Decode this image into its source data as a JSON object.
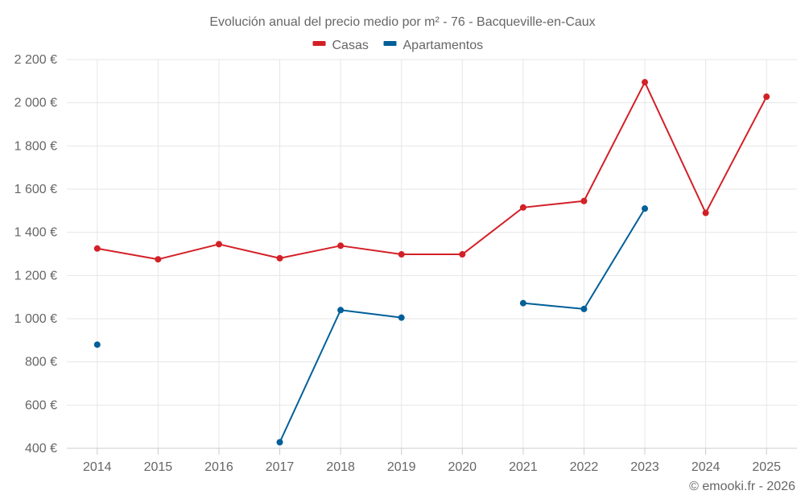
{
  "chart_data": {
    "type": "line",
    "title": "Evolución anual del precio medio por m² - 76 - Bacqueville-en-Caux",
    "categories": [
      "2014",
      "2015",
      "2016",
      "2017",
      "2018",
      "2019",
      "2020",
      "2021",
      "2022",
      "2023",
      "2024",
      "2025"
    ],
    "ylim": [
      400,
      2200
    ],
    "yticks": [
      400,
      600,
      800,
      1000,
      1200,
      1400,
      1600,
      1800,
      2000,
      2200
    ],
    "ytick_labels": [
      "400 €",
      "600 €",
      "800 €",
      "1 000 €",
      "1 200 €",
      "1 400 €",
      "1 600 €",
      "1 800 €",
      "2 000 €",
      "2 200 €"
    ],
    "grid": true,
    "legend_position": "top-center",
    "series": [
      {
        "name": "Casas",
        "color": "#d32027",
        "values": [
          1325,
          1275,
          1345,
          1280,
          1338,
          1298,
          1298,
          1515,
          1545,
          2095,
          1490,
          2028
        ]
      },
      {
        "name": "Apartamentos",
        "color": "#005f99",
        "values": [
          880,
          null,
          null,
          428,
          1040,
          1005,
          null,
          1072,
          1045,
          1510,
          null,
          null
        ]
      }
    ],
    "credit": "© emooki.fr - 2026"
  }
}
